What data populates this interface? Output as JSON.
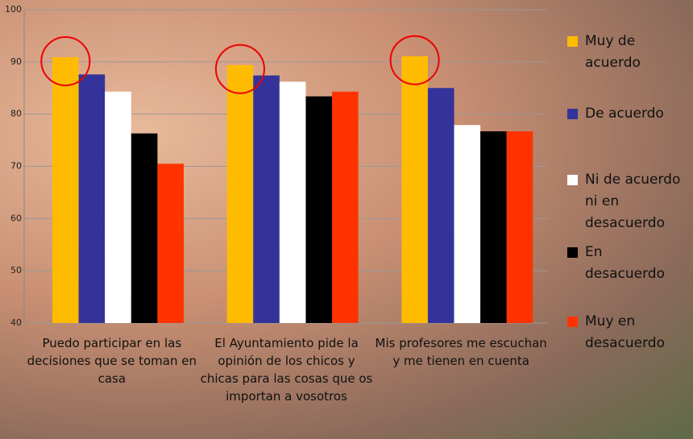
{
  "chart_data": {
    "type": "bar",
    "categories": [
      "Puedo participar en las decisiones que se toman en casa",
      "El Ayuntamiento pide la opinión de los chicos y chicas para las cosas que os importan a vosotros",
      "Mis profesores me escuchan y me tienen en cuenta"
    ],
    "series": [
      {
        "name": "Muy de acuerdo",
        "color": "#ffbb00",
        "values": [
          90.9,
          89.4,
          91.1
        ]
      },
      {
        "name": "De acuerdo",
        "color": "#333399",
        "values": [
          87.6,
          87.4,
          85.0
        ]
      },
      {
        "name": "Ni de acuerdo ni en desacuerdo",
        "color": "#ffffff",
        "values": [
          84.3,
          86.2,
          77.9
        ]
      },
      {
        "name": "En desacuerdo",
        "color": "#000000",
        "values": [
          76.3,
          83.4,
          76.7
        ]
      },
      {
        "name": "Muy en desacuerdo",
        "color": "#ff3300",
        "values": [
          70.5,
          84.3,
          76.7
        ]
      }
    ],
    "ylim": [
      40,
      100
    ],
    "yticks": [
      40,
      50,
      60,
      70,
      80,
      90,
      100
    ],
    "grid": true,
    "legend": "right"
  }
}
